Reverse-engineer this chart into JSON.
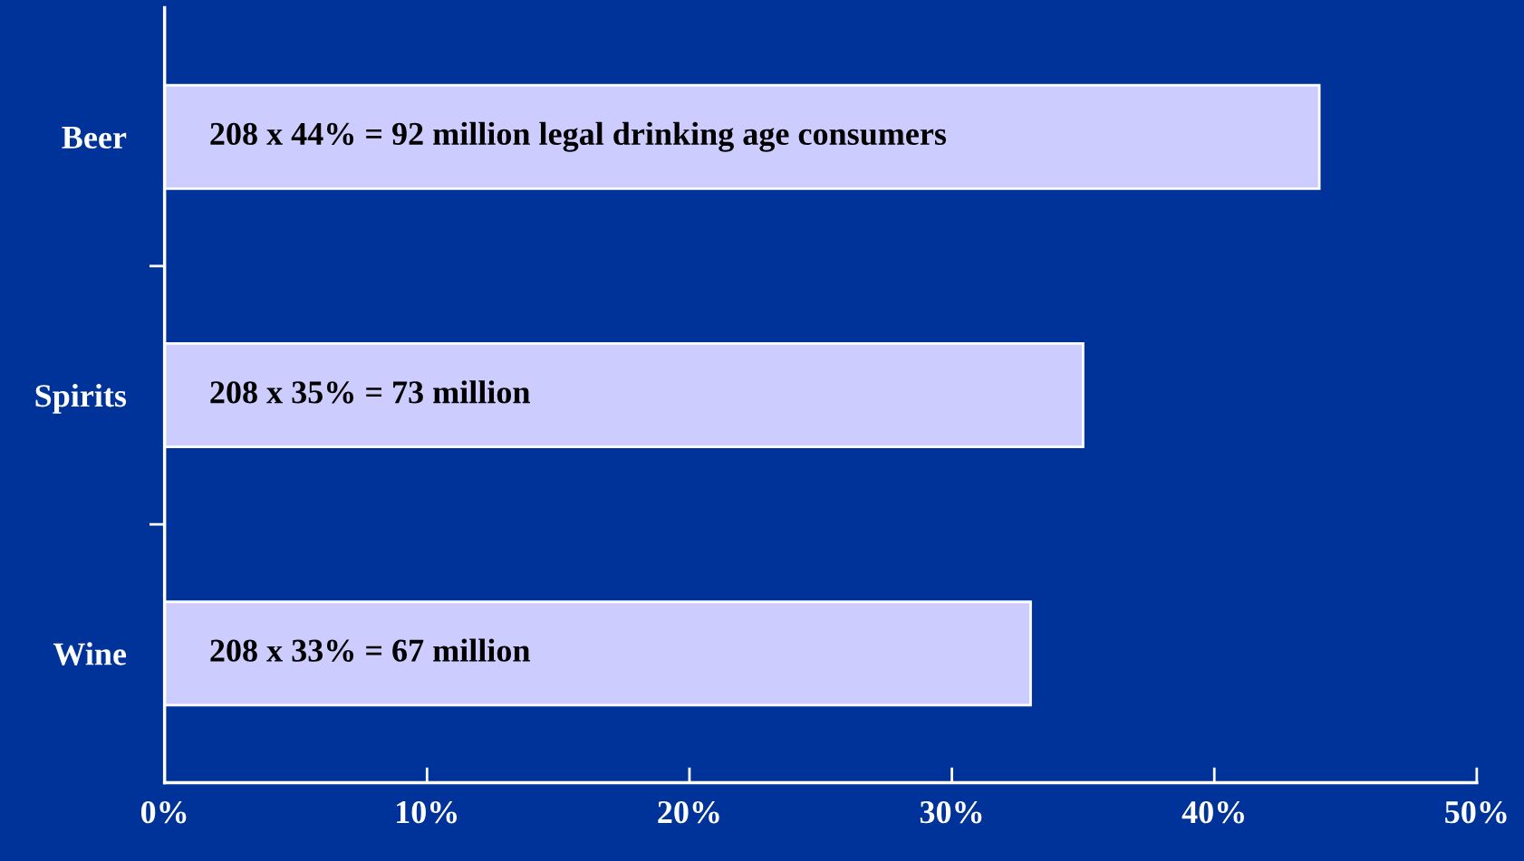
{
  "chart_data": {
    "type": "bar",
    "orientation": "horizontal",
    "categories": [
      "Beer",
      "Spirits",
      "Wine"
    ],
    "values": [
      44,
      35,
      33
    ],
    "value_labels": [
      "208 x 44% = 92 million legal drinking age consumers",
      "208 x 35% = 73 million",
      "208 x 33% = 67 million"
    ],
    "color": "#ccccff",
    "xlim": [
      0,
      50
    ],
    "xticks": [
      {
        "value": 0,
        "label": "0%"
      },
      {
        "value": 10,
        "label": "10%"
      },
      {
        "value": 20,
        "label": "20%"
      },
      {
        "value": 30,
        "label": "30%"
      },
      {
        "value": 40,
        "label": "40%"
      },
      {
        "value": 50,
        "label": "50%"
      }
    ],
    "grid": false
  }
}
